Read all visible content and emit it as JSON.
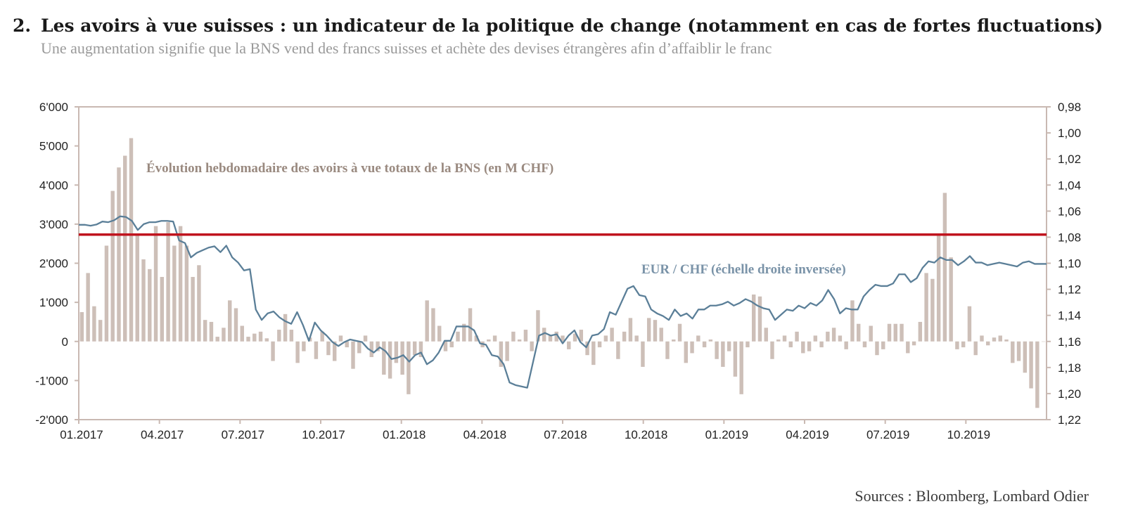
{
  "header": {
    "number": "2.",
    "title": "Les avoirs à vue suisses : un indicateur de la politique de change (notamment en cas de fortes fluctuations)",
    "subtitle": "Une augmentation signifie que la BNS vend des francs suisses et achète des devises étrangères afin d’affaiblir le franc"
  },
  "footer": {
    "source": "Sources : Bloomberg, Lombard Odier"
  },
  "colors": {
    "bars": "#cdbfb8",
    "line": "#5b7f98",
    "reference": "#c0141e",
    "axis": "#c9b9b2"
  },
  "chart_data": {
    "type": "bar+line",
    "x_labels": [
      "01.2017",
      "04.2017",
      "07.2017",
      "10.2017",
      "01.2018",
      "04.2018",
      "07.2018",
      "10.2018",
      "01.2019",
      "04.2019",
      "07.2019",
      "10.2019"
    ],
    "left_axis": {
      "ylim": [
        -2000,
        6000
      ],
      "ticks": [
        "-2'000",
        "-1'000",
        "0",
        "1'000",
        "2'000",
        "3'000",
        "4'000",
        "5'000",
        "6'000"
      ]
    },
    "right_axis": {
      "inverted": true,
      "ylim": [
        0.98,
        1.22
      ],
      "ticks": [
        "0,98",
        "1,00",
        "1,02",
        "1,04",
        "1,06",
        "1,08",
        "1,10",
        "1,12",
        "1,14",
        "1,16",
        "1,18",
        "1,20",
        "1,22"
      ]
    },
    "reference_line": {
      "axis": "right",
      "value": 1.078
    },
    "annotations": {
      "bars": "Évolution hebdomadaire des avoirs à vue totaux de la BNS (en M CHF)",
      "line": "EUR / CHF (échelle droite inversée)"
    },
    "bar_series": {
      "name": "Évolution hebdomadaire des avoirs à vue totaux de la BNS (en M CHF)",
      "unit": "M CHF",
      "values": [
        750,
        1750,
        900,
        550,
        2450,
        3850,
        4450,
        4750,
        5200,
        2750,
        2100,
        1850,
        2950,
        1650,
        3050,
        2450,
        2950,
        2450,
        1650,
        1950,
        550,
        500,
        120,
        350,
        1050,
        850,
        400,
        120,
        200,
        250,
        80,
        -500,
        300,
        700,
        300,
        -550,
        -250,
        100,
        -450,
        250,
        -350,
        -500,
        150,
        -150,
        -700,
        -300,
        150,
        -400,
        -250,
        -850,
        -950,
        -550,
        -850,
        -1350,
        -350,
        -400,
        1050,
        850,
        400,
        -250,
        -150,
        250,
        450,
        850,
        150,
        -150,
        50,
        150,
        -650,
        -500,
        250,
        50,
        300,
        -250,
        800,
        350,
        150,
        250,
        150,
        -200,
        200,
        300,
        -350,
        -600,
        -150,
        150,
        350,
        -450,
        250,
        600,
        150,
        -650,
        600,
        550,
        350,
        -450,
        50,
        450,
        -550,
        -300,
        150,
        -150,
        50,
        -450,
        -650,
        -250,
        -900,
        -1350,
        -150,
        1200,
        1150,
        350,
        -450,
        50,
        150,
        -150,
        250,
        -300,
        -250,
        150,
        -150,
        250,
        350,
        150,
        -200,
        1050,
        450,
        -150,
        400,
        -350,
        -200,
        450,
        450,
        450,
        -300,
        -100,
        500,
        1750,
        1600,
        2750,
        3800,
        2150,
        -200,
        -150,
        900,
        -350,
        150,
        -100,
        100,
        150,
        50,
        -550,
        -500,
        -800,
        -1200,
        -1700,
        0
      ],
      "dates": [
        "week 1..157 (01.2017–12.2019)"
      ]
    },
    "line_series": {
      "name": "EUR / CHF (échelle droite inversée)",
      "axis": "right",
      "values": [
        1.0705,
        1.0705,
        1.0712,
        1.0703,
        1.068,
        1.0685,
        1.067,
        1.064,
        1.0645,
        1.0675,
        1.0745,
        1.07,
        1.0685,
        1.0685,
        1.0675,
        1.0675,
        1.068,
        1.0825,
        1.0845,
        1.0955,
        1.092,
        1.09,
        1.088,
        1.087,
        1.0915,
        1.0865,
        1.0955,
        1.0995,
        1.1055,
        1.1045,
        1.1355,
        1.1435,
        1.1385,
        1.137,
        1.1415,
        1.1445,
        1.1465,
        1.1375,
        1.1475,
        1.1595,
        1.1455,
        1.1515,
        1.1555,
        1.1605,
        1.1635,
        1.1605,
        1.1585,
        1.1595,
        1.1605,
        1.1655,
        1.1685,
        1.1645,
        1.1675,
        1.1735,
        1.1725,
        1.1705,
        1.1755,
        1.1705,
        1.1685,
        1.1775,
        1.1745,
        1.1685,
        1.1595,
        1.1595,
        1.1485,
        1.1485,
        1.1485,
        1.1515,
        1.1615,
        1.1625,
        1.1705,
        1.1715,
        1.1775,
        1.1915,
        1.1935,
        1.1945,
        1.1955,
        1.1755,
        1.1555,
        1.1535,
        1.1555,
        1.1545,
        1.1615,
        1.1555,
        1.1515,
        1.1605,
        1.1645,
        1.1555,
        1.1545,
        1.1505,
        1.1375,
        1.1395,
        1.1295,
        1.1195,
        1.1175,
        1.1245,
        1.1255,
        1.1355,
        1.1385,
        1.1405,
        1.1435,
        1.1355,
        1.1405,
        1.1385,
        1.1425,
        1.1355,
        1.1355,
        1.1325,
        1.1325,
        1.1315,
        1.1295,
        1.1325,
        1.1305,
        1.1275,
        1.1295,
        1.1325,
        1.1345,
        1.1355,
        1.1435,
        1.1395,
        1.1355,
        1.1365,
        1.1325,
        1.1345,
        1.1305,
        1.1325,
        1.1285,
        1.1205,
        1.1275,
        1.1385,
        1.1345,
        1.1355,
        1.1355,
        1.1255,
        1.1205,
        1.1165,
        1.1175,
        1.1175,
        1.1155,
        1.1085,
        1.1085,
        1.1145,
        1.1115,
        1.1035,
        1.0985,
        1.0995,
        1.0955,
        1.0975,
        1.0975,
        1.1015,
        1.0985,
        1.0945,
        1.0995,
        1.0995,
        1.1015,
        1.1005,
        1.0995,
        1.1005,
        1.1015,
        1.1025,
        1.0995,
        1.0985,
        1.1005,
        1.1005,
        1.1005
      ]
    },
    "grid": false,
    "legend": "inline annotations"
  }
}
